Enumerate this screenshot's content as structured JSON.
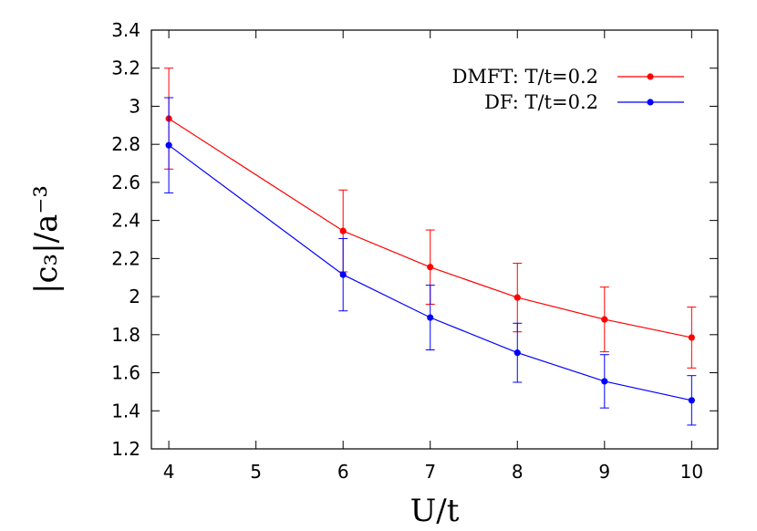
{
  "chart_data": {
    "type": "line",
    "xlabel": "U/t",
    "ylabel": "|c₃|/a⁻³",
    "xlim": [
      3.8,
      10.3
    ],
    "ylim": [
      1.2,
      3.4
    ],
    "xticks": [
      4,
      5,
      6,
      7,
      8,
      9,
      10
    ],
    "yticks": [
      1.2,
      1.4,
      1.6,
      1.8,
      2,
      2.2,
      2.4,
      2.6,
      2.8,
      3,
      3.2,
      3.4
    ],
    "ytick_labels": [
      "1.2",
      "1.4",
      "1.6",
      "1.8",
      "2",
      "2.2",
      "2.4",
      "2.6",
      "2.8",
      "3",
      "3.2",
      "3.4"
    ],
    "grid": false,
    "legend_position": "top-right",
    "series": [
      {
        "name": "DMFT: T/t=0.2",
        "color": "#ff0000",
        "x": [
          4,
          6,
          7,
          8,
          9,
          10
        ],
        "y": [
          2.935,
          2.345,
          2.155,
          1.995,
          1.88,
          1.785
        ],
        "err": [
          0.265,
          0.215,
          0.195,
          0.18,
          0.17,
          0.16
        ]
      },
      {
        "name": "DF: T/t=0.2",
        "color": "#0000ff",
        "x": [
          4,
          6,
          7,
          8,
          9,
          10
        ],
        "y": [
          2.795,
          2.115,
          1.89,
          1.705,
          1.555,
          1.455
        ],
        "err": [
          0.25,
          0.19,
          0.17,
          0.155,
          0.14,
          0.13
        ]
      }
    ]
  }
}
